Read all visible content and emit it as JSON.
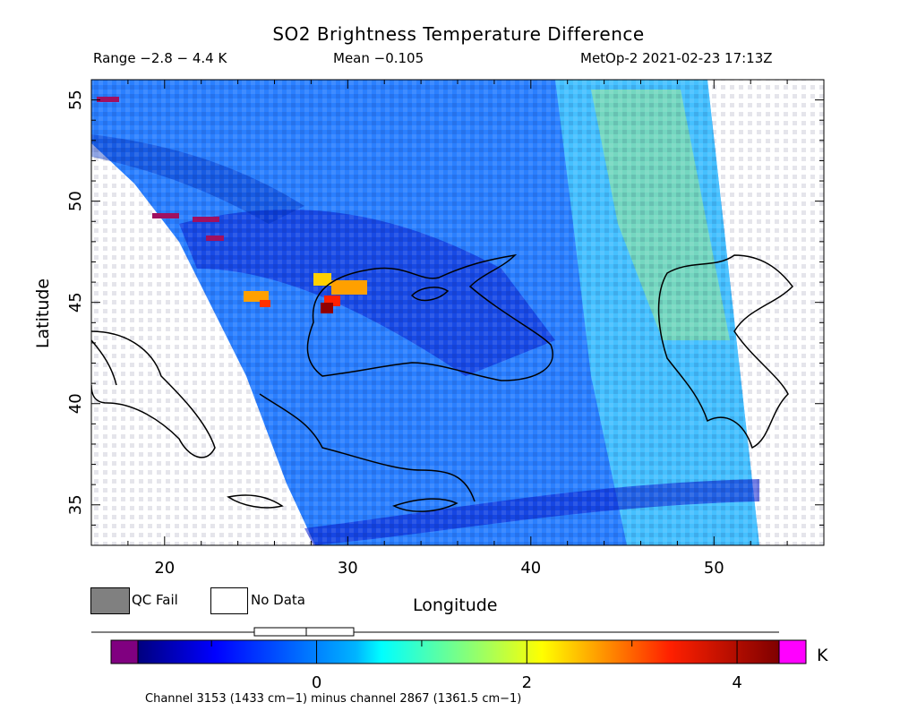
{
  "header": {
    "title": "SO2 Brightness Temperature Difference",
    "range": "Range −2.8 − 4.4 K",
    "mean": "Mean −0.105",
    "satellite_time": "MetOp-2 2021-02-23 17:13Z"
  },
  "map": {
    "xlabel": "Longitude",
    "ylabel": "Latitude",
    "lon_range": [
      16,
      56
    ],
    "lat_range": [
      33,
      56
    ],
    "lon_ticks": [
      "20",
      "30",
      "40",
      "50"
    ],
    "lat_ticks": [
      "55",
      "50",
      "45",
      "40",
      "35"
    ],
    "gridlines": false,
    "coastlines": true
  },
  "legend": {
    "qc_fail": "QC Fail",
    "no_data": "No Data",
    "qc_fail_color": "#808080",
    "no_data_color": "#ffffff"
  },
  "colorbar": {
    "ticks": [
      "0",
      "2",
      "4"
    ],
    "unit": "K",
    "range": [
      -1.7,
      4.4
    ],
    "under_color": "#800080",
    "over_color": "#ff00ff",
    "colormap": "jet"
  },
  "footnote": "Channel 3153 (1433 cm−1) minus channel 2867 (1361.5 cm−1)"
}
